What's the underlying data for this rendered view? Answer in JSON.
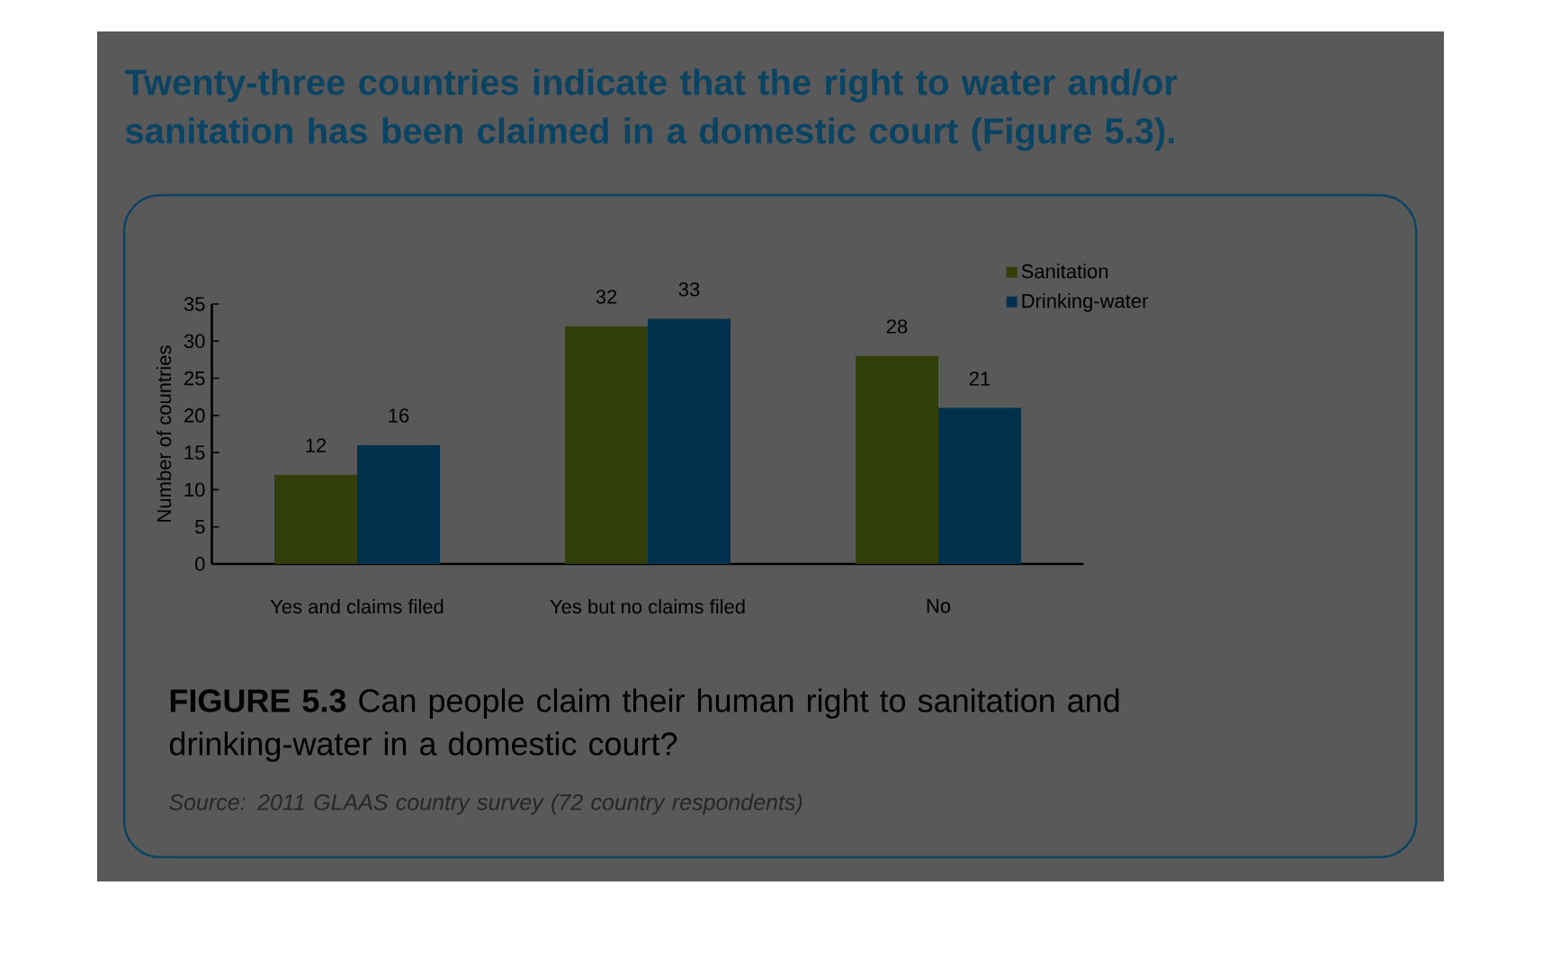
{
  "chart_data": {
    "type": "bar",
    "title": "Twenty-three countries indicate that the right to water and/or sanitation has been claimed in a domestic court (Figure 5.3).",
    "ylabel": "Number of countries",
    "categories": [
      "Yes and claims filed",
      "Yes but no claims filed",
      "No"
    ],
    "series": [
      {
        "name": "Sanitation",
        "color": "#333f0b",
        "values": [
          12,
          32,
          28
        ]
      },
      {
        "name": "Drinking-water",
        "color": "#00324d",
        "values": [
          16,
          33,
          21
        ]
      }
    ],
    "ylim": [
      0,
      35
    ],
    "yticks": [
      0,
      5,
      10,
      15,
      20,
      25,
      30,
      35
    ],
    "data_labels": true,
    "legend": "top right",
    "grid": false,
    "annotations": [
      "**FIGURE 5.3** Can people claim their human right to sanitation and drinking-water in a domestic court?",
      "*Source: 2011 GLAAS country survey (72 country respondents)*"
    ]
  }
}
